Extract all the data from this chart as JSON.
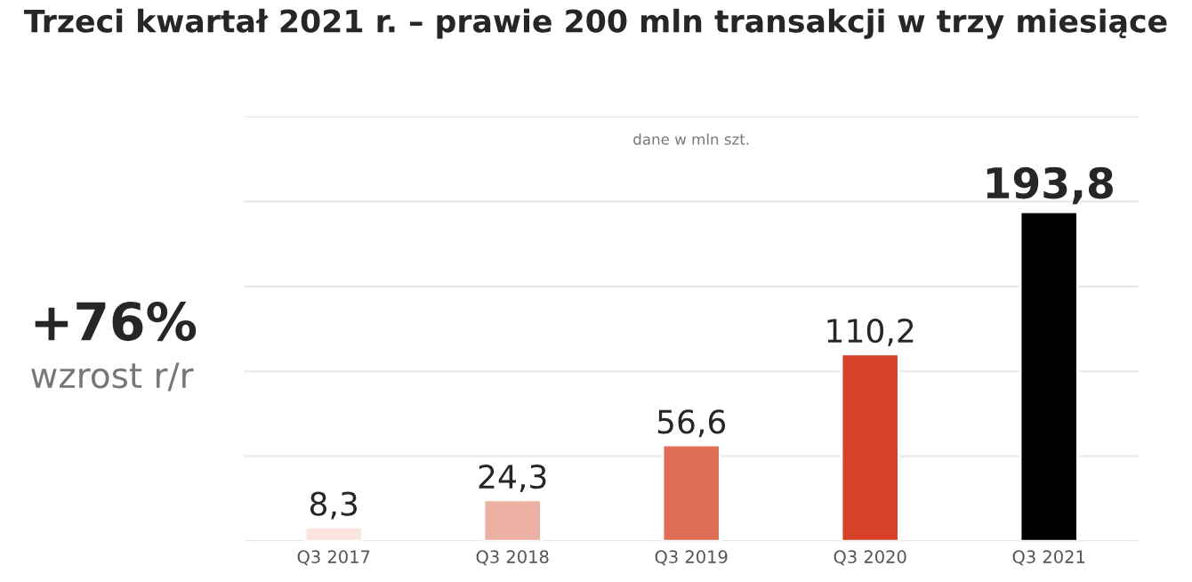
{
  "chart_data": {
    "type": "bar",
    "title": "Trzeci kwartał 2021 r. – prawie 200 mln transakcji w trzy miesiące",
    "categories": [
      "Q3 2017",
      "Q3 2018",
      "Q3 2019",
      "Q3 2020",
      "Q3 2021"
    ],
    "values": [
      8.3,
      24.3,
      56.6,
      110.2,
      193.8
    ],
    "value_labels": [
      "8,3",
      "24,3",
      "56,6",
      "110,2",
      "193,8"
    ],
    "colors": [
      "#fbe4df",
      "#ebb0a2",
      "#e06e57",
      "#d64128",
      "#000000"
    ],
    "ylim": [
      0,
      250
    ],
    "yticks": [
      {
        "value": 0,
        "label": null
      },
      {
        "value": 50,
        "label": null
      },
      {
        "value": 100,
        "label": null
      },
      {
        "value": 150,
        "label": null
      },
      {
        "value": 200,
        "label": null
      },
      {
        "value": 250,
        "label": null
      }
    ],
    "tick_labels": "x",
    "grid": "y",
    "annotations": [
      "dane w mln szt.",
      "+76%",
      "wzrost r/r"
    ]
  }
}
